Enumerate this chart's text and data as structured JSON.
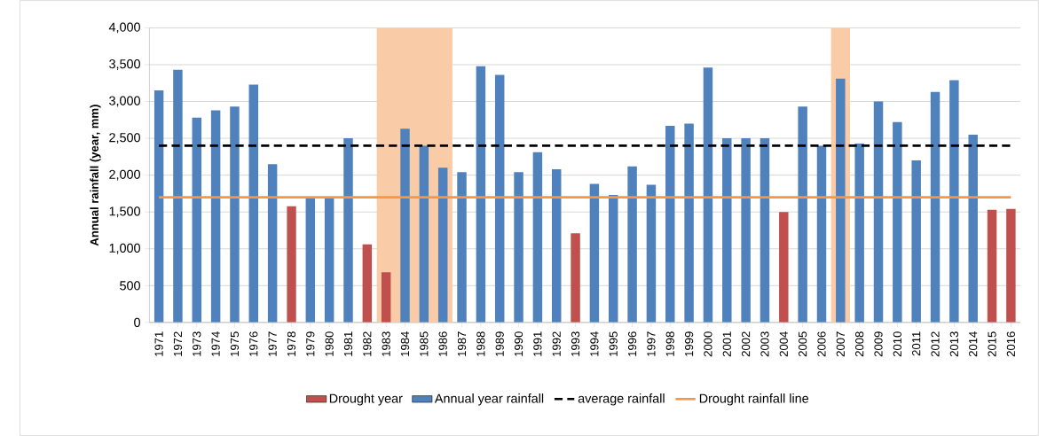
{
  "chart_data": {
    "type": "bar",
    "ylabel": "Annual rainfall (year, mm)",
    "categories": [
      "1971",
      "1972",
      "1973",
      "1974",
      "1975",
      "1976",
      "1977",
      "1978",
      "1979",
      "1980",
      "1981",
      "1982",
      "1983",
      "1984",
      "1985",
      "1986",
      "1987",
      "1988",
      "1989",
      "1990",
      "1991",
      "1992",
      "1993",
      "1994",
      "1995",
      "1996",
      "1997",
      "1998",
      "1999",
      "2000",
      "2001",
      "2002",
      "2003",
      "2004",
      "2005",
      "2006",
      "2007",
      "2008",
      "2009",
      "2010",
      "2011",
      "2012",
      "2013",
      "2014",
      "2015",
      "2016"
    ],
    "series": [
      {
        "name": "Drought year",
        "color": "#c0504d",
        "values": [
          null,
          null,
          null,
          null,
          null,
          null,
          null,
          1580,
          null,
          null,
          null,
          1060,
          680,
          null,
          null,
          null,
          null,
          null,
          null,
          null,
          null,
          null,
          1210,
          null,
          null,
          null,
          null,
          null,
          null,
          null,
          null,
          null,
          null,
          1500,
          null,
          null,
          null,
          null,
          null,
          null,
          null,
          null,
          null,
          null,
          1530,
          1540
        ]
      },
      {
        "name": "Annual year rainfall",
        "color": "#4f81bd",
        "values": [
          3150,
          3430,
          2780,
          2880,
          2930,
          3230,
          2150,
          null,
          1700,
          1690,
          2500,
          null,
          null,
          2630,
          2400,
          2100,
          2040,
          3480,
          3360,
          2040,
          2310,
          2080,
          null,
          1880,
          1730,
          2120,
          1870,
          2670,
          2700,
          3460,
          2500,
          2500,
          2500,
          null,
          2930,
          2400,
          3310,
          2430,
          3000,
          2720,
          2200,
          3130,
          3290,
          2550,
          null,
          null
        ]
      }
    ],
    "ref_lines": [
      {
        "axis": "y",
        "value": 2400,
        "label": "average rainfall",
        "color": "#000000",
        "line_style": "dashed"
      },
      {
        "axis": "y",
        "value": 1700,
        "label": "Drought rainfall line",
        "color": "#f79646",
        "line_style": "solid"
      }
    ],
    "bands": [
      {
        "axis": "x",
        "from": "1983",
        "to": "1986",
        "color": "#f9cba7"
      },
      {
        "axis": "x",
        "from": "2007",
        "to": "2007",
        "color": "#f9cba7"
      }
    ],
    "ylim": [
      0,
      4000
    ],
    "yticks": [
      {
        "value": 0,
        "label": "0"
      },
      {
        "value": 500,
        "label": "500"
      },
      {
        "value": 1000,
        "label": "1,000"
      },
      {
        "value": 1500,
        "label": "1,500"
      },
      {
        "value": 2000,
        "label": "2,000"
      },
      {
        "value": 2500,
        "label": "2,500"
      },
      {
        "value": 3000,
        "label": "3,000"
      },
      {
        "value": 3500,
        "label": "3,500"
      },
      {
        "value": 4000,
        "label": "4,000"
      }
    ],
    "grid": "y",
    "legend": "bottom"
  }
}
